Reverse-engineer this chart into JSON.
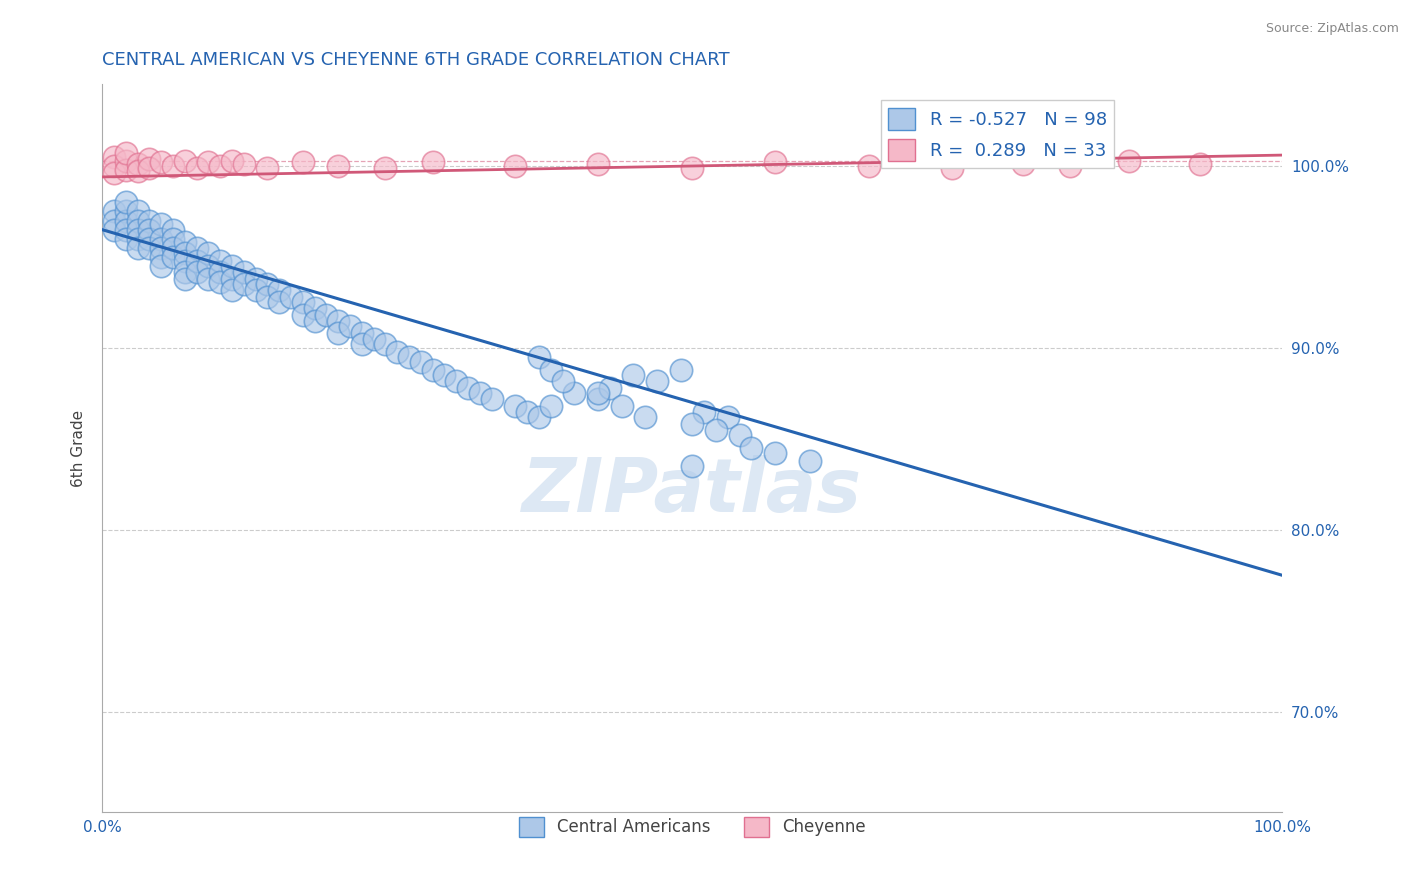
{
  "title": "CENTRAL AMERICAN VS CHEYENNE 6TH GRADE CORRELATION CHART",
  "source": "Source: ZipAtlas.com",
  "ylabel": "6th Grade",
  "xmin": 0.0,
  "xmax": 1.0,
  "ymin": 0.645,
  "ymax": 1.045,
  "yticks": [
    0.7,
    0.8,
    0.9,
    1.0
  ],
  "ytick_labels": [
    "70.0%",
    "80.0%",
    "90.0%",
    "100.0%"
  ],
  "blue_color": "#adc8e8",
  "blue_edge_color": "#5090d0",
  "blue_line_color": "#2563b0",
  "pink_color": "#f5b8c8",
  "pink_edge_color": "#e07090",
  "pink_line_color": "#d05878",
  "legend_R1": "-0.527",
  "legend_N1": "98",
  "legend_R2": "0.289",
  "legend_N2": "33",
  "blue_trend_x": [
    0.0,
    1.0
  ],
  "blue_trend_y": [
    0.965,
    0.775
  ],
  "pink_trend_x": [
    0.0,
    1.0
  ],
  "pink_trend_y": [
    0.994,
    1.006
  ],
  "pink_hline_y": 1.003,
  "watermark": "ZIPatlas",
  "title_color": "#2563b0",
  "title_fontsize": 13,
  "axis_label_color": "#444444",
  "tick_color": "#2563b0",
  "grid_color": "#cccccc",
  "blue_x": [
    0.01,
    0.01,
    0.01,
    0.02,
    0.02,
    0.02,
    0.02,
    0.02,
    0.03,
    0.03,
    0.03,
    0.03,
    0.03,
    0.04,
    0.04,
    0.04,
    0.04,
    0.05,
    0.05,
    0.05,
    0.05,
    0.05,
    0.06,
    0.06,
    0.06,
    0.06,
    0.07,
    0.07,
    0.07,
    0.07,
    0.07,
    0.08,
    0.08,
    0.08,
    0.09,
    0.09,
    0.09,
    0.1,
    0.1,
    0.1,
    0.11,
    0.11,
    0.11,
    0.12,
    0.12,
    0.13,
    0.13,
    0.14,
    0.14,
    0.15,
    0.15,
    0.16,
    0.17,
    0.17,
    0.18,
    0.18,
    0.19,
    0.2,
    0.2,
    0.21,
    0.22,
    0.22,
    0.23,
    0.24,
    0.25,
    0.26,
    0.27,
    0.28,
    0.29,
    0.3,
    0.31,
    0.32,
    0.33,
    0.35,
    0.36,
    0.37,
    0.38,
    0.4,
    0.42,
    0.43,
    0.45,
    0.47,
    0.49,
    0.51,
    0.53,
    0.5,
    0.52,
    0.54,
    0.37,
    0.38,
    0.39,
    0.42,
    0.44,
    0.46,
    0.55,
    0.57,
    0.6,
    0.5
  ],
  "blue_y": [
    0.975,
    0.97,
    0.965,
    0.975,
    0.97,
    0.965,
    0.96,
    0.98,
    0.975,
    0.97,
    0.965,
    0.96,
    0.955,
    0.97,
    0.965,
    0.96,
    0.955,
    0.968,
    0.96,
    0.955,
    0.95,
    0.945,
    0.965,
    0.96,
    0.955,
    0.95,
    0.958,
    0.952,
    0.948,
    0.942,
    0.938,
    0.955,
    0.948,
    0.942,
    0.952,
    0.945,
    0.938,
    0.948,
    0.942,
    0.936,
    0.945,
    0.938,
    0.932,
    0.942,
    0.935,
    0.938,
    0.932,
    0.935,
    0.928,
    0.932,
    0.925,
    0.928,
    0.925,
    0.918,
    0.922,
    0.915,
    0.918,
    0.915,
    0.908,
    0.912,
    0.908,
    0.902,
    0.905,
    0.902,
    0.898,
    0.895,
    0.892,
    0.888,
    0.885,
    0.882,
    0.878,
    0.875,
    0.872,
    0.868,
    0.865,
    0.862,
    0.868,
    0.875,
    0.872,
    0.878,
    0.885,
    0.882,
    0.888,
    0.865,
    0.862,
    0.858,
    0.855,
    0.852,
    0.895,
    0.888,
    0.882,
    0.875,
    0.868,
    0.862,
    0.845,
    0.842,
    0.838,
    0.835
  ],
  "pink_x": [
    0.01,
    0.01,
    0.01,
    0.02,
    0.02,
    0.02,
    0.03,
    0.03,
    0.04,
    0.04,
    0.05,
    0.06,
    0.07,
    0.08,
    0.09,
    0.1,
    0.11,
    0.12,
    0.14,
    0.17,
    0.2,
    0.24,
    0.28,
    0.35,
    0.42,
    0.5,
    0.57,
    0.65,
    0.72,
    0.78,
    0.82,
    0.87,
    0.93
  ],
  "pink_y": [
    1.005,
    1.0,
    0.996,
    1.003,
    0.998,
    1.007,
    1.001,
    0.997,
    1.004,
    0.999,
    1.002,
    1.0,
    1.003,
    0.999,
    1.002,
    1.0,
    1.003,
    1.001,
    0.999,
    1.002,
    1.0,
    0.999,
    1.002,
    1.0,
    1.001,
    0.999,
    1.002,
    1.0,
    0.999,
    1.001,
    1.0,
    1.003,
    1.001
  ]
}
